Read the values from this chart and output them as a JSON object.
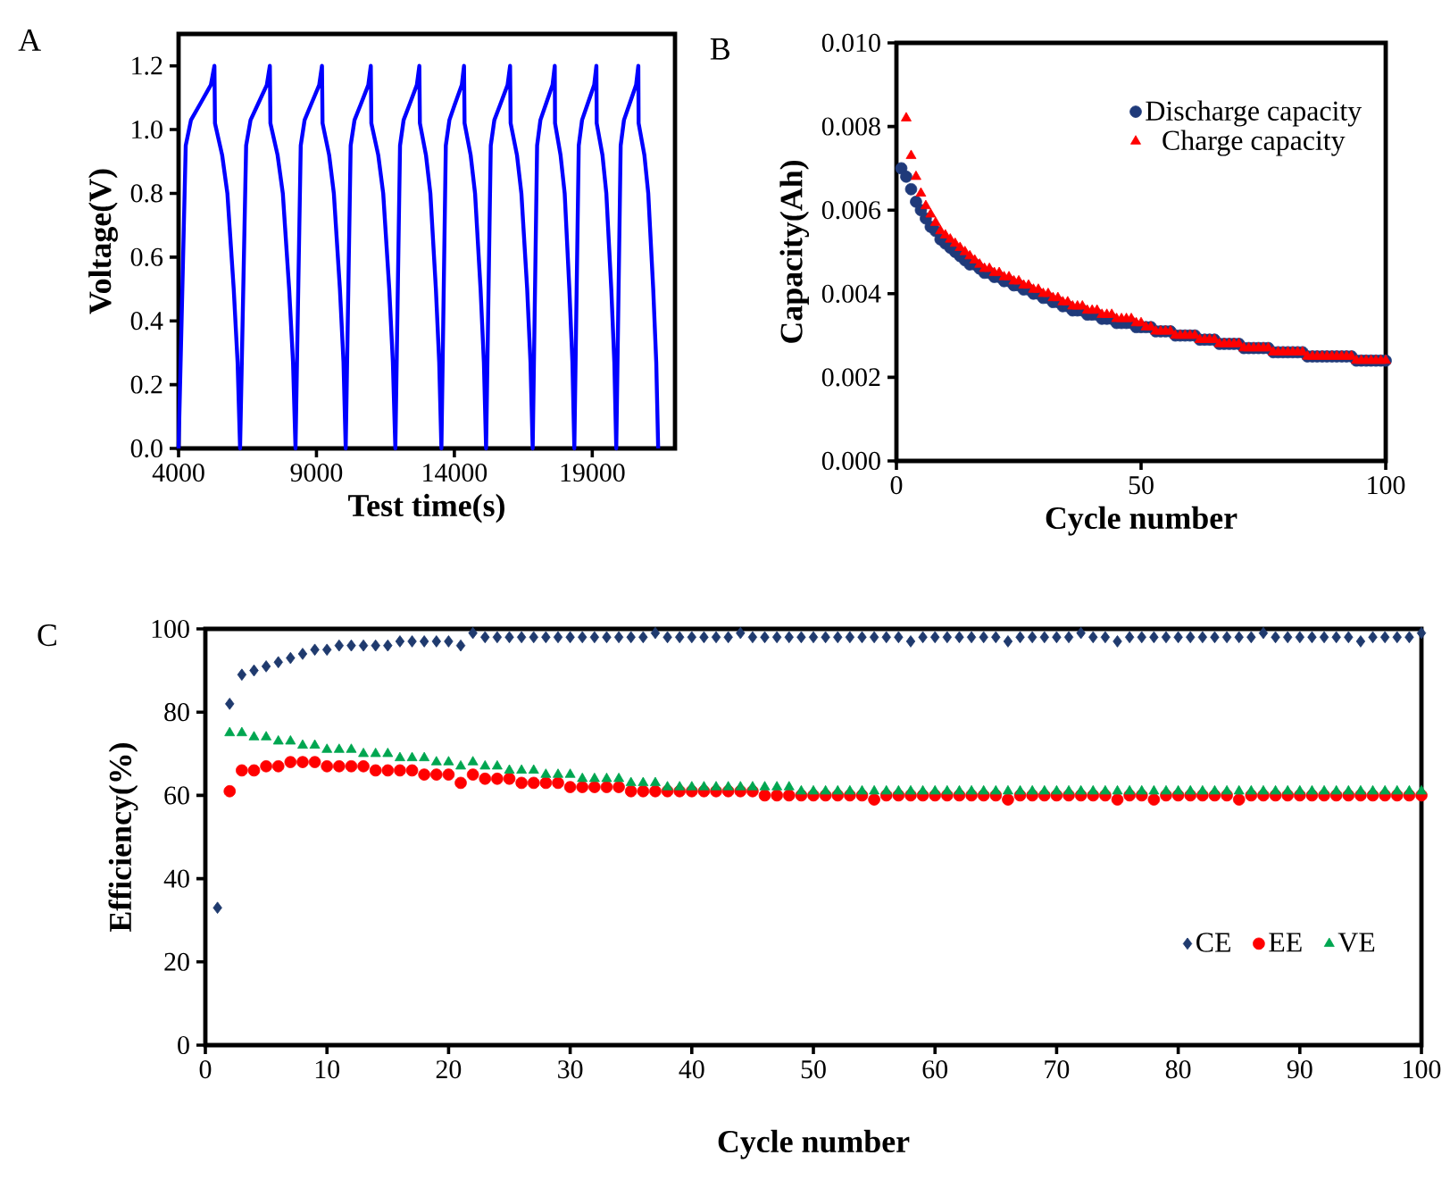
{
  "chart_data": [
    {
      "type": "line",
      "title": "A",
      "xlabel": "Test time(s)",
      "ylabel": "Voltage(V)",
      "xlim": [
        4000,
        22000
      ],
      "ylim": [
        0,
        1.3
      ],
      "xticks": [
        4000,
        9000,
        14000,
        19000
      ],
      "yticks": [
        {
          "value": 0,
          "label": "0.0"
        },
        {
          "value": 0.2,
          "label": "0.2"
        },
        {
          "value": 0.4,
          "label": "0.4"
        },
        {
          "value": 0.6,
          "label": "0.6"
        },
        {
          "value": 0.8,
          "label": "0.8"
        },
        {
          "value": 1.0,
          "label": "1.0"
        },
        {
          "value": 1.2,
          "label": "1.2"
        }
      ],
      "grid": false,
      "legend": false,
      "marker": "none",
      "line_style": "solid",
      "series": [
        {
          "color": "#0000ff",
          "x": [
            4000,
            4260,
            4450,
            4780,
            5170,
            5300,
            5320,
            5580,
            5770,
            6000,
            6140,
            6230,
            6450,
            6610,
            6880,
            7200,
            7310,
            7330,
            7590,
            7780,
            8010,
            8150,
            8240,
            8430,
            8570,
            8810,
            9100,
            9200,
            9220,
            9460,
            9630,
            9850,
            9980,
            10060,
            10240,
            10380,
            10610,
            10880,
            10970,
            10990,
            11240,
            11420,
            11640,
            11770,
            11860,
            12030,
            12160,
            12380,
            12640,
            12730,
            12750,
            12970,
            13130,
            13330,
            13450,
            13530,
            13690,
            13820,
            14020,
            14270,
            14350,
            14370,
            14590,
            14750,
            14950,
            15070,
            15150,
            15320,
            15450,
            15670,
            15930,
            16020,
            16040,
            16270,
            16430,
            16640,
            16760,
            16840,
            17000,
            17120,
            17320,
            17560,
            17640,
            17650,
            17850,
            18000,
            18170,
            18280,
            18350,
            18510,
            18630,
            18830,
            19070,
            19150,
            19160,
            19370,
            19510,
            19690,
            19800,
            19870,
            20030,
            20150,
            20350,
            20590,
            20670,
            20680,
            20890,
            21030,
            21210,
            21320,
            21390
          ],
          "values": [
            0,
            0.95,
            1.03,
            1.08,
            1.14,
            1.2,
            1.02,
            0.92,
            0.8,
            0.5,
            0.27,
            0,
            0.95,
            1.03,
            1.08,
            1.14,
            1.2,
            1.02,
            0.92,
            0.8,
            0.5,
            0.27,
            0,
            0.95,
            1.03,
            1.08,
            1.14,
            1.2,
            1.02,
            0.92,
            0.8,
            0.5,
            0.27,
            0,
            0.95,
            1.03,
            1.08,
            1.14,
            1.2,
            1.02,
            0.92,
            0.8,
            0.5,
            0.27,
            0,
            0.95,
            1.03,
            1.08,
            1.14,
            1.2,
            1.02,
            0.92,
            0.8,
            0.5,
            0.27,
            0,
            0.95,
            1.03,
            1.08,
            1.14,
            1.2,
            1.02,
            0.92,
            0.8,
            0.5,
            0.27,
            0,
            0.95,
            1.03,
            1.08,
            1.14,
            1.2,
            1.02,
            0.92,
            0.8,
            0.5,
            0.27,
            0,
            0.95,
            1.03,
            1.08,
            1.14,
            1.2,
            1.02,
            0.92,
            0.8,
            0.5,
            0.27,
            0,
            0.95,
            1.03,
            1.08,
            1.14,
            1.2,
            1.02,
            0.92,
            0.8,
            0.5,
            0.27,
            0,
            0.95,
            1.03,
            1.08,
            1.14,
            1.2,
            1.02,
            0.92,
            0.8,
            0.5,
            0.27,
            0
          ]
        }
      ]
    },
    {
      "type": "scatter",
      "title": "B",
      "xlabel": "Cycle number",
      "ylabel": "Capacity(Ah)",
      "xlim": [
        0,
        100
      ],
      "ylim": [
        0,
        0.01
      ],
      "xticks": [
        0,
        50,
        100
      ],
      "yticks": [
        {
          "value": 0,
          "label": "0.000"
        },
        {
          "value": 0.002,
          "label": "0.002"
        },
        {
          "value": 0.004,
          "label": "0.004"
        },
        {
          "value": 0.006,
          "label": "0.006"
        },
        {
          "value": 0.008,
          "label": "0.008"
        },
        {
          "value": 0.01,
          "label": "0.010"
        }
      ],
      "grid": false,
      "legend": "top right",
      "x": [
        1,
        2,
        3,
        4,
        5,
        6,
        7,
        8,
        9,
        10,
        11,
        12,
        13,
        14,
        15,
        16,
        17,
        18,
        19,
        20,
        21,
        22,
        23,
        24,
        25,
        26,
        27,
        28,
        29,
        30,
        31,
        32,
        33,
        34,
        35,
        36,
        37,
        38,
        39,
        40,
        41,
        42,
        43,
        44,
        45,
        46,
        47,
        48,
        49,
        50,
        51,
        52,
        53,
        54,
        55,
        56,
        57,
        58,
        59,
        60,
        61,
        62,
        63,
        64,
        65,
        66,
        67,
        68,
        69,
        70,
        71,
        72,
        73,
        74,
        75,
        76,
        77,
        78,
        79,
        80,
        81,
        82,
        83,
        84,
        85,
        86,
        87,
        88,
        89,
        90,
        91,
        92,
        93,
        94,
        95,
        96,
        97,
        98,
        99,
        100
      ],
      "series": [
        {
          "name": "Discharge capacity",
          "color": "#1f3a7a",
          "marker": "circle",
          "values": [
            0.007,
            0.0068,
            0.0065,
            0.0062,
            0.006,
            0.0058,
            0.0056,
            0.0055,
            0.0053,
            0.0052,
            0.0051,
            0.005,
            0.0049,
            0.0048,
            0.0047,
            0.0047,
            0.0046,
            0.0045,
            0.0045,
            0.0044,
            0.0044,
            0.0043,
            0.0043,
            0.0042,
            0.0042,
            0.0041,
            0.0041,
            0.004,
            0.004,
            0.0039,
            0.0039,
            0.0038,
            0.0038,
            0.0037,
            0.0037,
            0.0036,
            0.0036,
            0.0036,
            0.0035,
            0.0035,
            0.0035,
            0.0034,
            0.0034,
            0.0034,
            0.0033,
            0.0033,
            0.0033,
            0.0033,
            0.0032,
            0.0032,
            0.0032,
            0.0032,
            0.0031,
            0.0031,
            0.0031,
            0.0031,
            0.003,
            0.003,
            0.003,
            0.003,
            0.003,
            0.0029,
            0.0029,
            0.0029,
            0.0029,
            0.0028,
            0.0028,
            0.0028,
            0.0028,
            0.0028,
            0.0027,
            0.0027,
            0.0027,
            0.0027,
            0.0027,
            0.0027,
            0.0026,
            0.0026,
            0.0026,
            0.0026,
            0.0026,
            0.0026,
            0.0026,
            0.0025,
            0.0025,
            0.0025,
            0.0025,
            0.0025,
            0.0025,
            0.0025,
            0.0025,
            0.0025,
            0.0025,
            0.0024,
            0.0024,
            0.0024,
            0.0024,
            0.0024,
            0.0024,
            0.0024
          ]
        },
        {
          "name": "Charge capacity",
          "color": "#ff0000",
          "marker": "triangle",
          "values": [
            null,
            0.0082,
            0.0073,
            0.0068,
            0.0064,
            0.0061,
            0.0059,
            0.0057,
            0.0055,
            0.0054,
            0.0053,
            0.0052,
            0.0051,
            0.005,
            0.0049,
            0.0048,
            0.0047,
            0.0046,
            0.0046,
            0.0045,
            0.0045,
            0.0044,
            0.0044,
            0.0043,
            0.0043,
            0.0042,
            0.0042,
            0.0041,
            0.0041,
            0.004,
            0.004,
            0.0039,
            0.0039,
            0.0038,
            0.0038,
            0.0037,
            0.0037,
            0.0037,
            0.0036,
            0.0036,
            0.0036,
            0.0035,
            0.0035,
            0.0035,
            0.0034,
            0.0034,
            0.0034,
            0.0034,
            0.0033,
            0.0033,
            0.0032,
            0.0032,
            0.0031,
            0.0031,
            0.0031,
            0.0031,
            0.003,
            0.003,
            0.003,
            0.003,
            0.003,
            0.0029,
            0.0029,
            0.0029,
            0.0029,
            0.0028,
            0.0028,
            0.0028,
            0.0028,
            0.0028,
            0.0027,
            0.0027,
            0.0027,
            0.0027,
            0.0027,
            0.0027,
            0.0026,
            0.0026,
            0.0026,
            0.0026,
            0.0026,
            0.0026,
            0.0026,
            0.0025,
            0.0025,
            0.0025,
            0.0025,
            0.0025,
            0.0025,
            0.0025,
            0.0025,
            0.0025,
            0.0025,
            0.0024,
            0.0024,
            0.0024,
            0.0024,
            0.0024,
            0.0024,
            0.0024
          ]
        }
      ]
    },
    {
      "type": "scatter",
      "title": "C",
      "xlabel": "Cycle number",
      "ylabel": "Efficiency(%)",
      "xlim": [
        0,
        100
      ],
      "ylim": [
        0,
        100
      ],
      "xticks": [
        0,
        10,
        20,
        30,
        40,
        50,
        60,
        70,
        80,
        90,
        100
      ],
      "yticks": [
        0,
        20,
        40,
        60,
        80,
        100
      ],
      "grid": false,
      "legend": "bottom right",
      "x": [
        1,
        2,
        3,
        4,
        5,
        6,
        7,
        8,
        9,
        10,
        11,
        12,
        13,
        14,
        15,
        16,
        17,
        18,
        19,
        20,
        21,
        22,
        23,
        24,
        25,
        26,
        27,
        28,
        29,
        30,
        31,
        32,
        33,
        34,
        35,
        36,
        37,
        38,
        39,
        40,
        41,
        42,
        43,
        44,
        45,
        46,
        47,
        48,
        49,
        50,
        51,
        52,
        53,
        54,
        55,
        56,
        57,
        58,
        59,
        60,
        61,
        62,
        63,
        64,
        65,
        66,
        67,
        68,
        69,
        70,
        71,
        72,
        73,
        74,
        75,
        76,
        77,
        78,
        79,
        80,
        81,
        82,
        83,
        84,
        85,
        86,
        87,
        88,
        89,
        90,
        91,
        92,
        93,
        94,
        95,
        96,
        97,
        98,
        99,
        100
      ],
      "series": [
        {
          "name": "CE",
          "color": "#1f3a6e",
          "marker": "diamond",
          "values": [
            33,
            82,
            89,
            90,
            91,
            92,
            93,
            94,
            95,
            95,
            96,
            96,
            96,
            96,
            96,
            97,
            97,
            97,
            97,
            97,
            96,
            99,
            98,
            98,
            98,
            98,
            98,
            98,
            98,
            98,
            98,
            98,
            98,
            98,
            98,
            98,
            99,
            98,
            98,
            98,
            98,
            98,
            98,
            99,
            98,
            98,
            98,
            98,
            98,
            98,
            98,
            98,
            98,
            98,
            98,
            98,
            98,
            97,
            98,
            98,
            98,
            98,
            98,
            98,
            98,
            97,
            98,
            98,
            98,
            98,
            98,
            99,
            98,
            98,
            97,
            98,
            98,
            98,
            98,
            98,
            98,
            98,
            98,
            98,
            98,
            98,
            99,
            98,
            98,
            98,
            98,
            98,
            98,
            98,
            97,
            98,
            98,
            98,
            98,
            99
          ]
        },
        {
          "name": "EE",
          "color": "#ff0000",
          "marker": "circle",
          "values": [
            null,
            61,
            66,
            66,
            67,
            67,
            68,
            68,
            68,
            67,
            67,
            67,
            67,
            66,
            66,
            66,
            66,
            65,
            65,
            65,
            63,
            65,
            64,
            64,
            64,
            63,
            63,
            63,
            63,
            62,
            62,
            62,
            62,
            62,
            61,
            61,
            61,
            61,
            61,
            61,
            61,
            61,
            61,
            61,
            61,
            60,
            60,
            60,
            60,
            60,
            60,
            60,
            60,
            60,
            59,
            60,
            60,
            60,
            60,
            60,
            60,
            60,
            60,
            60,
            60,
            59,
            60,
            60,
            60,
            60,
            60,
            60,
            60,
            60,
            59,
            60,
            60,
            59,
            60,
            60,
            60,
            60,
            60,
            60,
            59,
            60,
            60,
            60,
            60,
            60,
            60,
            60,
            60,
            60,
            60,
            60,
            60,
            60,
            60,
            60
          ]
        },
        {
          "name": "VE",
          "color": "#00a650",
          "marker": "triangle",
          "values": [
            null,
            75,
            75,
            74,
            74,
            73,
            73,
            72,
            72,
            71,
            71,
            71,
            70,
            70,
            70,
            69,
            69,
            69,
            68,
            68,
            67,
            68,
            67,
            67,
            66,
            66,
            66,
            65,
            65,
            65,
            64,
            64,
            64,
            64,
            63,
            63,
            63,
            62,
            62,
            62,
            62,
            62,
            62,
            62,
            62,
            62,
            62,
            62,
            61,
            61,
            61,
            61,
            61,
            61,
            61,
            61,
            61,
            61,
            61,
            61,
            61,
            61,
            61,
            61,
            61,
            61,
            61,
            61,
            61,
            61,
            61,
            61,
            61,
            61,
            61,
            61,
            61,
            61,
            61,
            61,
            61,
            61,
            61,
            61,
            61,
            61,
            61,
            61,
            61,
            61,
            61,
            61,
            61,
            61,
            61,
            61,
            61,
            61,
            61,
            61
          ]
        }
      ]
    }
  ]
}
